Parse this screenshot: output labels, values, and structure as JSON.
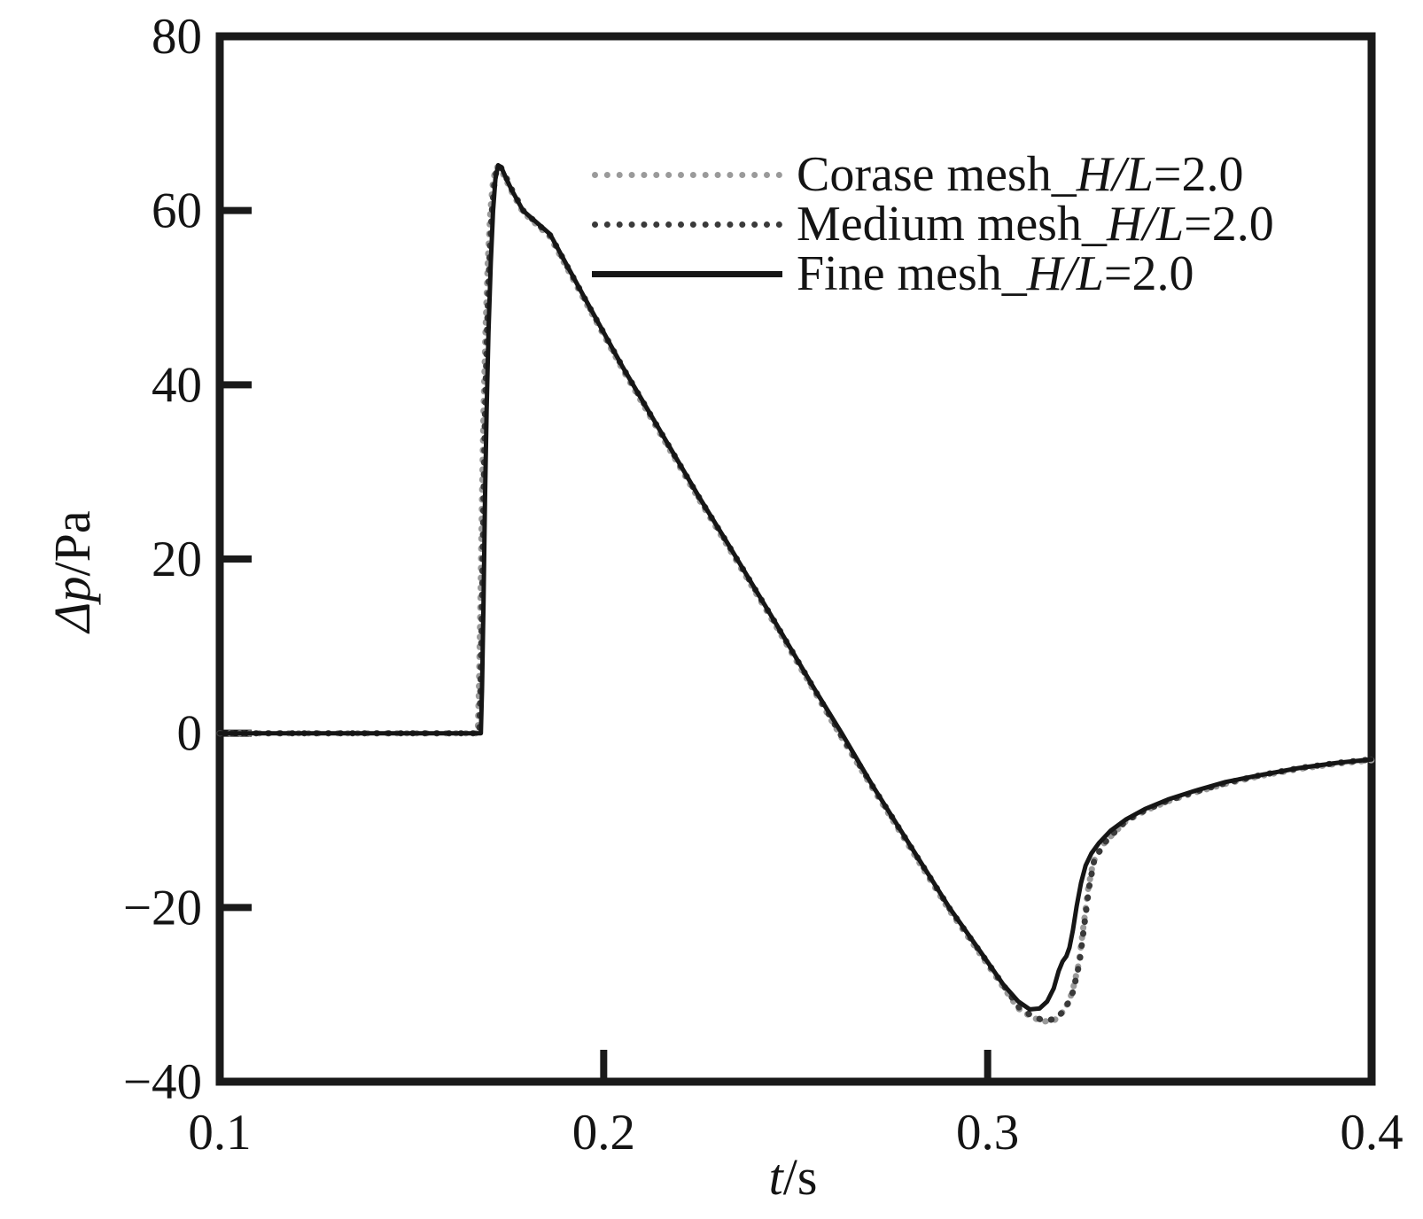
{
  "figure": {
    "background": "#ffffff",
    "axis_color": "#1a1a1a",
    "text_color": "#141414"
  },
  "axes": {
    "xlabel_italic": "t",
    "xlabel_rest": "/s",
    "ylabel_italic": "Δp",
    "ylabel_rest": "/Pa",
    "x_tick_labels": [
      "0.1",
      "0.2",
      "0.3",
      "0.4"
    ],
    "y_tick_labels": [
      "80",
      "60",
      "40",
      "20",
      "0",
      "−20",
      "−40"
    ]
  },
  "legend": {
    "items": [
      {
        "prefix": "Corase mesh_",
        "italic": "H/L",
        "suffix": "=2.0",
        "line": "dotted",
        "color": "#9a9a9a"
      },
      {
        "prefix": "Medium mesh_",
        "italic": "H/L",
        "suffix": "=2.0",
        "line": "dotted",
        "color": "#3a3a3a"
      },
      {
        "prefix": "Fine mesh_",
        "italic": "H/L",
        "suffix": "=2.0",
        "line": "solid",
        "color": "#161616"
      }
    ]
  },
  "chart_data": {
    "type": "line",
    "title": "",
    "xlabel": "t/s",
    "ylabel": "Δp/Pa",
    "xlim": [
      0.1,
      0.4
    ],
    "ylim": [
      -40,
      80
    ],
    "x_ticks": [
      0.1,
      0.2,
      0.3,
      0.4
    ],
    "y_ticks": [
      80,
      60,
      40,
      20,
      0,
      -20,
      -40
    ],
    "grid": false,
    "legend_position": "upper right inside",
    "series": [
      {
        "name": "Corase mesh_H/L=2.0",
        "color": "#9a9a9a",
        "line": "dotted",
        "dash": "0.6 10.5",
        "width": 7,
        "points": [
          [
            0.1,
            0
          ],
          [
            0.13,
            0
          ],
          [
            0.16,
            0
          ],
          [
            0.1672,
            0
          ],
          [
            0.1675,
            5
          ],
          [
            0.1679,
            15
          ],
          [
            0.1683,
            27
          ],
          [
            0.1687,
            37
          ],
          [
            0.1692,
            46
          ],
          [
            0.1698,
            54
          ],
          [
            0.1705,
            60
          ],
          [
            0.1712,
            63.4
          ],
          [
            0.172,
            65
          ],
          [
            0.173,
            64.9
          ],
          [
            0.1745,
            63.6
          ],
          [
            0.176,
            62.2
          ],
          [
            0.179,
            59.8
          ],
          [
            0.186,
            57
          ],
          [
            0.195,
            49.7
          ],
          [
            0.205,
            41.7
          ],
          [
            0.215,
            34.2
          ],
          [
            0.225,
            26.7
          ],
          [
            0.232,
            21.7
          ],
          [
            0.245,
            12.2
          ],
          [
            0.255,
            4.7
          ],
          [
            0.2617,
            -0.3
          ],
          [
            0.27,
            -6.3
          ],
          [
            0.28,
            -13.3
          ],
          [
            0.29,
            -20.3
          ],
          [
            0.298,
            -25.3
          ],
          [
            0.304,
            -29.1
          ],
          [
            0.308,
            -31.6
          ],
          [
            0.3115,
            -32.6
          ],
          [
            0.3145,
            -33.1
          ],
          [
            0.3175,
            -32.9
          ],
          [
            0.32,
            -31.8
          ],
          [
            0.322,
            -29.8
          ],
          [
            0.3237,
            -26.5
          ],
          [
            0.325,
            -22
          ],
          [
            0.3262,
            -17.8
          ],
          [
            0.3275,
            -14.8
          ],
          [
            0.33,
            -12.8
          ],
          [
            0.333,
            -11.4
          ],
          [
            0.336,
            -10.1
          ],
          [
            0.341,
            -8.9
          ],
          [
            0.347,
            -7.8
          ],
          [
            0.354,
            -6.8
          ],
          [
            0.362,
            -5.8
          ],
          [
            0.371,
            -4.9
          ],
          [
            0.381,
            -4.1
          ],
          [
            0.391,
            -3.5
          ],
          [
            0.4,
            -3.1
          ]
        ]
      },
      {
        "name": "Medium mesh_H/L=2.0",
        "color": "#3a3a3a",
        "line": "dotted",
        "dash": "0.6 13",
        "width": 7,
        "points": [
          [
            0.1,
            0
          ],
          [
            0.13,
            0
          ],
          [
            0.16,
            0
          ],
          [
            0.1676,
            0
          ],
          [
            0.1679,
            5
          ],
          [
            0.1683,
            15
          ],
          [
            0.1687,
            27
          ],
          [
            0.1691,
            37
          ],
          [
            0.1696,
            46
          ],
          [
            0.1702,
            54
          ],
          [
            0.1709,
            60
          ],
          [
            0.1716,
            63.5
          ],
          [
            0.1723,
            65.1
          ],
          [
            0.1733,
            64.9
          ],
          [
            0.1747,
            63.7
          ],
          [
            0.1762,
            62.3
          ],
          [
            0.1792,
            59.9
          ],
          [
            0.1862,
            57.1
          ],
          [
            0.1952,
            49.8
          ],
          [
            0.2052,
            41.8
          ],
          [
            0.2152,
            34.3
          ],
          [
            0.2252,
            26.8
          ],
          [
            0.2322,
            21.8
          ],
          [
            0.2452,
            12.3
          ],
          [
            0.2552,
            4.8
          ],
          [
            0.2618,
            -0.2
          ],
          [
            0.2702,
            -6.2
          ],
          [
            0.2802,
            -13.2
          ],
          [
            0.2902,
            -20.2
          ],
          [
            0.2982,
            -25.2
          ],
          [
            0.3042,
            -29
          ],
          [
            0.3082,
            -31.5
          ],
          [
            0.3117,
            -32.5
          ],
          [
            0.3147,
            -33
          ],
          [
            0.3177,
            -32.8
          ],
          [
            0.3202,
            -31.7
          ],
          [
            0.3222,
            -29.7
          ],
          [
            0.3239,
            -26.4
          ],
          [
            0.3252,
            -21.9
          ],
          [
            0.3264,
            -17.7
          ],
          [
            0.3277,
            -14.7
          ],
          [
            0.3302,
            -12.7
          ],
          [
            0.3332,
            -11.3
          ],
          [
            0.3362,
            -10
          ],
          [
            0.3412,
            -8.8
          ],
          [
            0.3472,
            -7.7
          ],
          [
            0.3542,
            -6.7
          ],
          [
            0.3622,
            -5.7
          ],
          [
            0.3712,
            -4.8
          ],
          [
            0.3812,
            -4
          ],
          [
            0.3912,
            -3.4
          ],
          [
            0.4,
            -3
          ]
        ]
      },
      {
        "name": "Fine mesh_H/L=2.0",
        "color": "#161616",
        "line": "solid",
        "dash": "",
        "width": 5,
        "points": [
          [
            0.1,
            0
          ],
          [
            0.13,
            0
          ],
          [
            0.16,
            0
          ],
          [
            0.168,
            0
          ],
          [
            0.1683,
            5
          ],
          [
            0.1687,
            15
          ],
          [
            0.1691,
            27
          ],
          [
            0.1695,
            37
          ],
          [
            0.17,
            46
          ],
          [
            0.1706,
            54
          ],
          [
            0.1712,
            60
          ],
          [
            0.1718,
            63.6
          ],
          [
            0.1725,
            65.2
          ],
          [
            0.1733,
            65
          ],
          [
            0.1745,
            63.8
          ],
          [
            0.176,
            62.4
          ],
          [
            0.179,
            60
          ],
          [
            0.186,
            57.3
          ],
          [
            0.195,
            50
          ],
          [
            0.205,
            42
          ],
          [
            0.215,
            34.5
          ],
          [
            0.225,
            27
          ],
          [
            0.232,
            22
          ],
          [
            0.245,
            12.5
          ],
          [
            0.255,
            5
          ],
          [
            0.262,
            0
          ],
          [
            0.27,
            -6
          ],
          [
            0.28,
            -13
          ],
          [
            0.29,
            -20
          ],
          [
            0.298,
            -25
          ],
          [
            0.304,
            -28.8
          ],
          [
            0.308,
            -30.8
          ],
          [
            0.311,
            -31.7
          ],
          [
            0.3135,
            -31.6
          ],
          [
            0.3155,
            -30.8
          ],
          [
            0.3172,
            -29.3
          ],
          [
            0.3185,
            -27.3
          ],
          [
            0.3195,
            -26.2
          ],
          [
            0.3205,
            -25.6
          ],
          [
            0.3213,
            -24.6
          ],
          [
            0.3222,
            -22.6
          ],
          [
            0.3232,
            -19.8
          ],
          [
            0.3243,
            -17.2
          ],
          [
            0.3255,
            -15.2
          ],
          [
            0.327,
            -13.8
          ],
          [
            0.329,
            -12.6
          ],
          [
            0.332,
            -11.2
          ],
          [
            0.336,
            -9.9
          ],
          [
            0.341,
            -8.7
          ],
          [
            0.347,
            -7.6
          ],
          [
            0.354,
            -6.6
          ],
          [
            0.362,
            -5.6
          ],
          [
            0.371,
            -4.8
          ],
          [
            0.381,
            -4
          ],
          [
            0.391,
            -3.4
          ],
          [
            0.4,
            -3
          ]
        ]
      }
    ]
  }
}
